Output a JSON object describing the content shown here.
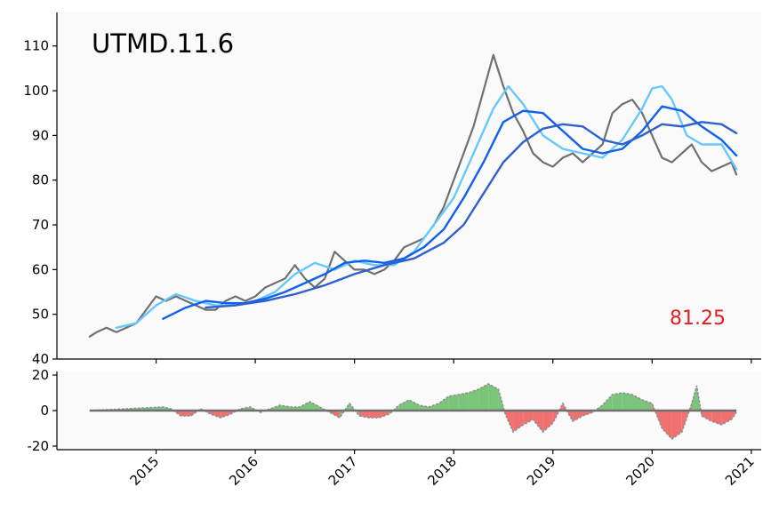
{
  "chart_data": [
    {
      "type": "line",
      "title": "UTMD.11.6",
      "last_value_label": "81.25",
      "xlabel": "",
      "ylabel": "",
      "ylim": [
        40,
        117.5
      ],
      "yticks": [
        40,
        50,
        60,
        70,
        80,
        90,
        100,
        110
      ],
      "xlim": [
        2014.0,
        2021.1
      ],
      "xticks": [
        "2015",
        "2016",
        "2017",
        "2018",
        "2019",
        "2020",
        "2021"
      ],
      "grid": false,
      "colors": {
        "price": "#707070",
        "ma_fast": "#66c8ff",
        "ma_mid": "#1060ee",
        "ma_slow": "#3060cc",
        "last_value": "#e02020",
        "panel_bg": "#fafafa"
      },
      "series": [
        {
          "x": [
            2014.33,
            2014.4,
            2014.5,
            2014.6,
            2014.7,
            2014.8,
            2014.9,
            2015.0,
            2015.1,
            2015.2,
            2015.3,
            2015.4,
            2015.5,
            2015.6,
            2015.7,
            2015.8,
            2015.9,
            2016.0,
            2016.1,
            2016.2,
            2016.3,
            2016.4,
            2016.5,
            2016.6,
            2016.7,
            2016.8,
            2016.9,
            2017.0,
            2017.1,
            2017.2,
            2017.3,
            2017.4,
            2017.5,
            2017.6,
            2017.7,
            2017.8,
            2017.9,
            2018.0,
            2018.1,
            2018.2,
            2018.3,
            2018.4,
            2018.5,
            2018.6,
            2018.7,
            2018.8,
            2018.9,
            2019.0,
            2019.1,
            2019.2,
            2019.3,
            2019.4,
            2019.5,
            2019.6,
            2019.7,
            2019.8,
            2019.9,
            2020.0,
            2020.1,
            2020.2,
            2020.3,
            2020.4,
            2020.5,
            2020.6,
            2020.7,
            2020.8,
            2020.85
          ],
          "values": [
            45,
            46,
            47,
            46,
            47,
            48,
            51,
            54,
            53,
            54,
            53,
            52,
            51,
            51,
            53,
            54,
            53,
            54,
            56,
            57,
            58,
            61,
            58,
            56,
            58,
            64,
            62,
            60,
            60,
            59,
            60,
            62,
            65,
            66,
            67,
            70,
            74,
            80,
            86,
            92,
            100,
            108,
            101,
            95,
            91,
            86,
            84,
            83,
            85,
            86,
            84,
            86,
            88,
            95,
            97,
            98,
            95,
            90,
            85,
            84,
            86,
            88,
            84,
            82,
            83,
            84,
            81.25
          ]
        },
        {
          "x": [
            2014.6,
            2014.8,
            2015.0,
            2015.2,
            2015.4,
            2015.6,
            2015.8,
            2016.0,
            2016.2,
            2016.4,
            2016.6,
            2016.8,
            2017.0,
            2017.2,
            2017.4,
            2017.6,
            2017.8,
            2018.0,
            2018.2,
            2018.4,
            2018.55,
            2018.7,
            2018.9,
            2019.1,
            2019.3,
            2019.5,
            2019.7,
            2019.9,
            2020.0,
            2020.1,
            2020.2,
            2020.35,
            2020.5,
            2020.7,
            2020.85
          ],
          "values": [
            47,
            48,
            52,
            54.5,
            53,
            52,
            52,
            53,
            55,
            59,
            61.5,
            60,
            62,
            61,
            61,
            64,
            70,
            76,
            86,
            96,
            101,
            97,
            90,
            87,
            86,
            85,
            89,
            96,
            100.5,
            101,
            98,
            90,
            88,
            88,
            82.5
          ]
        },
        {
          "x": [
            2015.07,
            2015.3,
            2015.5,
            2015.7,
            2015.9,
            2016.1,
            2016.3,
            2016.5,
            2016.7,
            2016.9,
            2017.1,
            2017.3,
            2017.5,
            2017.7,
            2017.9,
            2018.1,
            2018.3,
            2018.5,
            2018.7,
            2018.9,
            2019.1,
            2019.3,
            2019.5,
            2019.7,
            2019.9,
            2020.1,
            2020.3,
            2020.5,
            2020.7,
            2020.85
          ],
          "values": [
            49,
            51.5,
            53,
            52.5,
            52.5,
            53.5,
            55,
            57,
            59,
            61.5,
            62,
            61.5,
            62.5,
            65,
            69,
            76,
            84,
            93,
            95.5,
            95,
            91,
            87,
            86,
            87,
            91,
            96.5,
            95.5,
            92,
            89,
            85.5
          ]
        },
        {
          "x": [
            2015.5,
            2015.8,
            2016.1,
            2016.4,
            2016.7,
            2017.0,
            2017.3,
            2017.6,
            2017.9,
            2018.1,
            2018.3,
            2018.5,
            2018.7,
            2018.9,
            2019.1,
            2019.3,
            2019.5,
            2019.7,
            2019.9,
            2020.1,
            2020.3,
            2020.5,
            2020.7,
            2020.85
          ],
          "values": [
            51.5,
            52,
            53,
            54.5,
            56.5,
            59,
            61,
            62.5,
            66,
            70,
            77,
            84,
            88.5,
            91.5,
            92.5,
            92,
            89,
            88,
            90,
            92.5,
            92,
            93,
            92.5,
            90.5
          ]
        }
      ]
    },
    {
      "type": "area",
      "ylim": [
        -22,
        22
      ],
      "yticks": [
        -20,
        0,
        20
      ],
      "colors": {
        "positive": "#6cbf6c",
        "negative": "#f06060",
        "line": "#909090",
        "zero": "#707070"
      },
      "series": [
        {
          "x": [
            2014.33,
            2015.07,
            2015.15,
            2015.25,
            2015.35,
            2015.45,
            2015.55,
            2015.65,
            2015.75,
            2015.85,
            2015.95,
            2016.05,
            2016.15,
            2016.25,
            2016.35,
            2016.45,
            2016.55,
            2016.65,
            2016.75,
            2016.85,
            2016.95,
            2017.05,
            2017.15,
            2017.25,
            2017.35,
            2017.45,
            2017.55,
            2017.65,
            2017.75,
            2017.85,
            2017.95,
            2018.05,
            2018.15,
            2018.25,
            2018.35,
            2018.45,
            2018.52,
            2018.6,
            2018.7,
            2018.8,
            2018.9,
            2019.0,
            2019.1,
            2019.2,
            2019.3,
            2019.4,
            2019.5,
            2019.6,
            2019.7,
            2019.8,
            2019.9,
            2020.0,
            2020.1,
            2020.2,
            2020.3,
            2020.4,
            2020.45,
            2020.5,
            2020.6,
            2020.7,
            2020.8,
            2020.85
          ],
          "values": [
            0,
            2,
            1,
            -3,
            -3,
            1,
            -2,
            -4,
            -2,
            1,
            2,
            -1,
            1,
            3,
            2,
            2,
            5,
            2,
            -1,
            -4,
            4,
            -3,
            -4,
            -4,
            -2,
            3,
            6,
            3,
            2,
            4,
            8,
            9,
            10,
            12,
            15,
            12,
            -2,
            -12,
            -8,
            -5,
            -12,
            -7,
            4,
            -6,
            -3,
            -1,
            3,
            9,
            10,
            9,
            6,
            4,
            -10,
            -16,
            -12,
            4,
            14,
            -3,
            -6,
            -8,
            -5,
            -1
          ]
        }
      ]
    }
  ]
}
